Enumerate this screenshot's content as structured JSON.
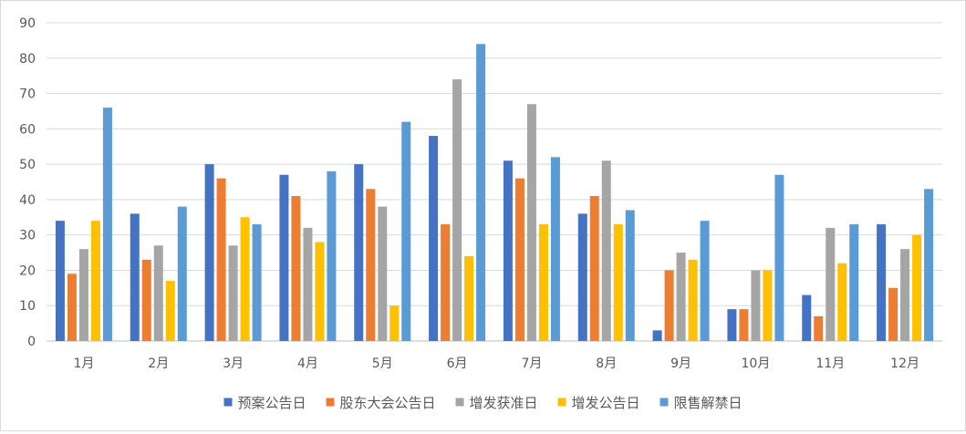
{
  "chart_data": {
    "type": "bar",
    "categories": [
      "1月",
      "2月",
      "3月",
      "4月",
      "5月",
      "6月",
      "7月",
      "8月",
      "9月",
      "10月",
      "11月",
      "12月"
    ],
    "series": [
      {
        "name": "预案公告日",
        "color": "#4472c4",
        "values": [
          34,
          36,
          50,
          47,
          50,
          58,
          51,
          36,
          3,
          9,
          13,
          33
        ]
      },
      {
        "name": "股东大会公告日",
        "color": "#ed7d31",
        "values": [
          19,
          23,
          46,
          41,
          43,
          33,
          46,
          41,
          20,
          9,
          7,
          15
        ]
      },
      {
        "name": "增发获准日",
        "color": "#a5a5a5",
        "values": [
          26,
          27,
          27,
          32,
          38,
          74,
          67,
          51,
          25,
          20,
          32,
          26
        ]
      },
      {
        "name": "增发公告日",
        "color": "#ffc000",
        "values": [
          34,
          17,
          35,
          28,
          10,
          24,
          33,
          33,
          23,
          20,
          22,
          30
        ]
      },
      {
        "name": "限售解禁日",
        "color": "#5b9bd5",
        "values": [
          66,
          38,
          33,
          48,
          62,
          84,
          52,
          37,
          34,
          47,
          33,
          43
        ]
      }
    ],
    "ylim": [
      0,
      90
    ],
    "yticks": [
      "0",
      "10",
      "20",
      "30",
      "40",
      "50",
      "60",
      "70",
      "80",
      "90"
    ],
    "grid": true,
    "legend": "bottom"
  }
}
